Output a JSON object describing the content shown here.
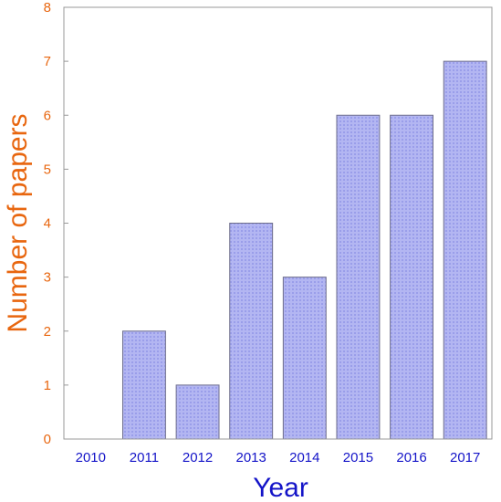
{
  "chart_data": {
    "type": "bar",
    "title": "",
    "xlabel": "Year",
    "ylabel": "Number of papers",
    "categories": [
      "2010",
      "2011",
      "2012",
      "2013",
      "2014",
      "2015",
      "2016",
      "2017"
    ],
    "values": [
      0,
      2,
      1,
      4,
      3,
      6,
      6,
      7
    ],
    "ylim": [
      0,
      8
    ],
    "yticks": [
      "0",
      "1",
      "2",
      "3",
      "4",
      "5",
      "6",
      "7",
      "8"
    ],
    "grid": false,
    "legend": "none",
    "colors": {
      "bar_fill": "#b3b6f2",
      "bar_stroke": "#6e6e8c",
      "bar_pattern": "#9a9eea",
      "y_axis_text": "#e8660f",
      "x_axis_text": "#1414c8",
      "frame": "#999999"
    }
  }
}
